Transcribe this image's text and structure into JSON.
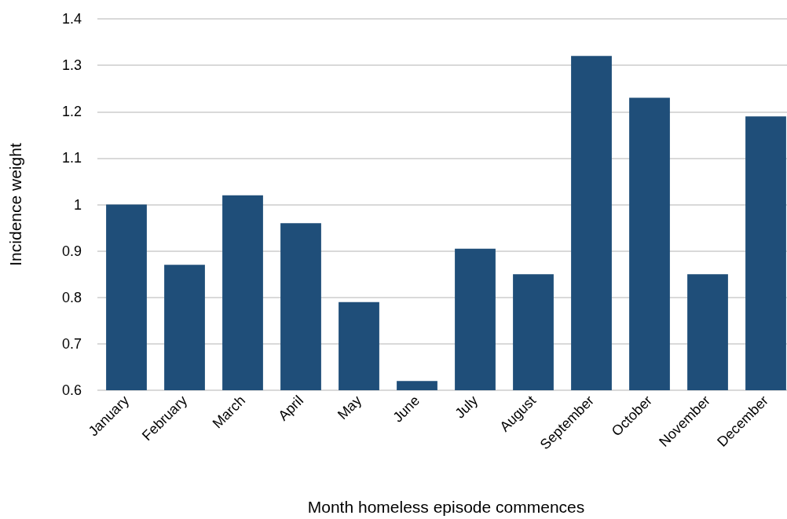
{
  "chart_data": {
    "type": "bar",
    "xlabel": "Month homeless episode commences",
    "ylabel": "Incidence weight",
    "categories": [
      "January",
      "February",
      "March",
      "April",
      "May",
      "June",
      "July",
      "August",
      "September",
      "October",
      "November",
      "December"
    ],
    "values": [
      1.0,
      0.87,
      1.02,
      0.96,
      0.79,
      0.62,
      0.905,
      0.85,
      1.32,
      1.23,
      0.85,
      1.19
    ],
    "color": "#1f4e79",
    "ylim": [
      0.6,
      1.4
    ],
    "yticks": [
      0.6,
      0.7,
      0.8,
      0.9,
      1,
      1.1,
      1.2,
      1.3,
      1.4
    ],
    "grid": "y"
  }
}
